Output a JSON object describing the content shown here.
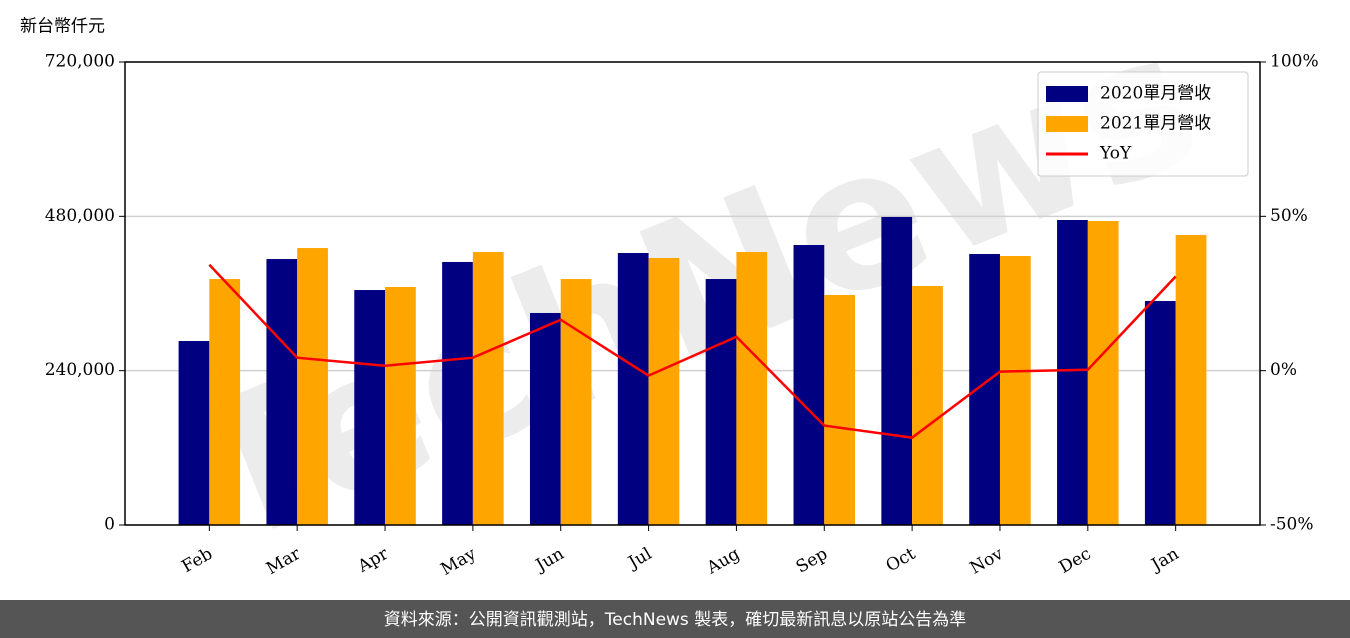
{
  "chart_data": {
    "type": "bar_line",
    "y_unit_label": "新台幣仟元",
    "categories": [
      "Feb",
      "Mar",
      "Apr",
      "May",
      "Jun",
      "Jul",
      "Aug",
      "Sep",
      "Oct",
      "Nov",
      "Dec",
      "Jan"
    ],
    "series": [
      {
        "name": "2020單月營收",
        "color": "#000080",
        "type": "bar",
        "values": [
          286100,
          413600,
          365400,
          409000,
          329700,
          423000,
          382500,
          435400,
          479000,
          421400,
          474300,
          348300
        ]
      },
      {
        "name": "2021單月營收",
        "color": "#ffa500",
        "type": "bar",
        "values": [
          382500,
          430700,
          370100,
          424500,
          382500,
          415200,
          424500,
          357700,
          371700,
          418300,
          472700,
          451000
        ]
      },
      {
        "name": "YoY",
        "color": "#ff0000",
        "type": "line",
        "axis": "y2",
        "values": [
          34.3,
          4.2,
          1.6,
          4.2,
          16.5,
          -1.6,
          11.0,
          -17.8,
          -21.7,
          -0.3,
          0.3,
          30.5
        ]
      }
    ],
    "ylim": [
      0,
      720000
    ],
    "yticks": [
      0,
      {
        "value": 240000,
        "label": "240,000"
      },
      {
        "value": 480000,
        "label": "480,000"
      },
      {
        "value": 720000,
        "label": "720,000"
      }
    ],
    "y2lim": [
      -50,
      100
    ],
    "y2ticks": [
      {
        "value": -50,
        "label": "-50%"
      },
      {
        "value": 0,
        "label": "0%"
      },
      {
        "value": 50,
        "label": "50%"
      },
      {
        "value": 100,
        "label": "100%"
      }
    ],
    "grid": true,
    "legend": "upper right"
  },
  "watermark": "TechNews",
  "footer": "資料來源：公開資訊觀測站，TechNews 製表，確切最新訊息以原站公告為準"
}
